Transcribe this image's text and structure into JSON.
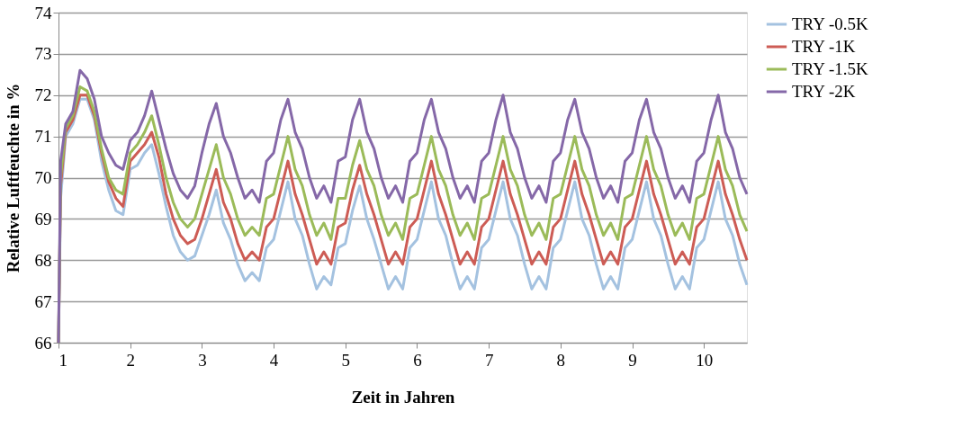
{
  "chart_data": {
    "type": "line",
    "xlabel": "Zeit in Jahren",
    "ylabel": "Relative Luftfeuchte in %",
    "x": [
      1.0,
      1.03,
      1.1,
      1.2,
      1.3,
      1.4,
      1.5,
      1.6,
      1.7,
      1.8,
      1.9,
      2.0,
      2.1,
      2.2,
      2.3,
      2.4,
      2.5,
      2.6,
      2.7,
      2.8,
      2.9,
      3.0,
      3.1,
      3.2,
      3.3,
      3.4,
      3.5,
      3.6,
      3.7,
      3.8,
      3.9,
      4.0,
      4.1,
      4.2,
      4.3,
      4.4,
      4.5,
      4.6,
      4.7,
      4.8,
      4.9,
      5.0,
      5.1,
      5.2,
      5.3,
      5.4,
      5.5,
      5.6,
      5.7,
      5.8,
      5.9,
      6.0,
      6.1,
      6.2,
      6.3,
      6.4,
      6.5,
      6.6,
      6.7,
      6.8,
      6.9,
      7.0,
      7.1,
      7.2,
      7.3,
      7.4,
      7.5,
      7.6,
      7.7,
      7.8,
      7.9,
      8.0,
      8.1,
      8.2,
      8.3,
      8.4,
      8.5,
      8.6,
      8.7,
      8.8,
      8.9,
      9.0,
      9.1,
      9.2,
      9.3,
      9.4,
      9.5,
      9.6,
      9.7,
      9.8,
      9.9,
      10.0,
      10.1,
      10.2,
      10.3,
      10.4,
      10.5,
      10.6
    ],
    "series": [
      {
        "name": "TRY -0.5K",
        "color": "#a4c2e0",
        "values": [
          66.0,
          69.5,
          71.0,
          71.3,
          71.9,
          71.9,
          71.4,
          70.4,
          69.7,
          69.2,
          69.1,
          70.2,
          70.3,
          70.6,
          70.8,
          70.1,
          69.3,
          68.6,
          68.2,
          68.0,
          68.1,
          68.6,
          69.1,
          69.7,
          68.9,
          68.5,
          67.9,
          67.5,
          67.7,
          67.5,
          68.3,
          68.5,
          69.2,
          69.9,
          69.0,
          68.6,
          67.9,
          67.3,
          67.6,
          67.4,
          68.3,
          68.4,
          69.2,
          69.8,
          69.0,
          68.5,
          67.9,
          67.3,
          67.6,
          67.3,
          68.3,
          68.5,
          69.2,
          69.9,
          69.0,
          68.6,
          67.9,
          67.3,
          67.6,
          67.3,
          68.3,
          68.5,
          69.2,
          69.9,
          69.0,
          68.6,
          67.9,
          67.3,
          67.6,
          67.3,
          68.3,
          68.5,
          69.2,
          69.9,
          69.0,
          68.6,
          67.9,
          67.3,
          67.6,
          67.3,
          68.3,
          68.5,
          69.2,
          69.9,
          69.0,
          68.6,
          67.9,
          67.3,
          67.6,
          67.3,
          68.3,
          68.5,
          69.2,
          69.9,
          69.0,
          68.6,
          67.9,
          67.4
        ]
      },
      {
        "name": "TRY -1K",
        "color": "#cd5c55",
        "values": [
          66.0,
          69.8,
          71.1,
          71.4,
          72.0,
          72.0,
          71.5,
          70.6,
          69.9,
          69.5,
          69.3,
          70.4,
          70.6,
          70.8,
          71.1,
          70.5,
          69.6,
          69.0,
          68.6,
          68.4,
          68.5,
          69.0,
          69.6,
          70.2,
          69.4,
          69.0,
          68.4,
          68.0,
          68.2,
          68.0,
          68.8,
          69.0,
          69.7,
          70.4,
          69.6,
          69.1,
          68.5,
          67.9,
          68.2,
          67.9,
          68.8,
          68.9,
          69.7,
          70.3,
          69.6,
          69.1,
          68.5,
          67.9,
          68.2,
          67.9,
          68.8,
          69.0,
          69.7,
          70.4,
          69.6,
          69.1,
          68.5,
          67.9,
          68.2,
          67.9,
          68.8,
          69.0,
          69.7,
          70.4,
          69.6,
          69.1,
          68.5,
          67.9,
          68.2,
          67.9,
          68.8,
          69.0,
          69.7,
          70.4,
          69.6,
          69.1,
          68.5,
          67.9,
          68.2,
          67.9,
          68.8,
          69.0,
          69.7,
          70.4,
          69.6,
          69.1,
          68.5,
          67.9,
          68.2,
          67.9,
          68.8,
          69.0,
          69.7,
          70.4,
          69.6,
          69.1,
          68.5,
          68.0
        ]
      },
      {
        "name": "TRY -1.5K",
        "color": "#9bbb59",
        "values": [
          66.0,
          70.0,
          71.2,
          71.5,
          72.2,
          72.1,
          71.6,
          70.7,
          70.0,
          69.7,
          69.6,
          70.6,
          70.8,
          71.1,
          71.5,
          70.8,
          70.0,
          69.4,
          69.0,
          68.8,
          69.0,
          69.6,
          70.2,
          70.8,
          70.0,
          69.6,
          69.0,
          68.6,
          68.8,
          68.6,
          69.5,
          69.6,
          70.3,
          71.0,
          70.2,
          69.8,
          69.1,
          68.6,
          68.9,
          68.5,
          69.5,
          69.5,
          70.3,
          70.9,
          70.2,
          69.8,
          69.1,
          68.6,
          68.9,
          68.5,
          69.5,
          69.6,
          70.3,
          71.0,
          70.2,
          69.8,
          69.1,
          68.6,
          68.9,
          68.5,
          69.5,
          69.6,
          70.3,
          71.0,
          70.2,
          69.8,
          69.1,
          68.6,
          68.9,
          68.5,
          69.5,
          69.6,
          70.3,
          71.0,
          70.2,
          69.8,
          69.1,
          68.6,
          68.9,
          68.5,
          69.5,
          69.6,
          70.3,
          71.0,
          70.2,
          69.8,
          69.1,
          68.6,
          68.9,
          68.5,
          69.5,
          69.6,
          70.3,
          71.0,
          70.2,
          69.8,
          69.1,
          68.7
        ]
      },
      {
        "name": "TRY -2K",
        "color": "#8568a8",
        "values": [
          66.0,
          70.4,
          71.3,
          71.6,
          72.6,
          72.4,
          71.9,
          71.0,
          70.6,
          70.3,
          70.2,
          70.9,
          71.1,
          71.5,
          72.1,
          71.4,
          70.7,
          70.1,
          69.7,
          69.5,
          69.8,
          70.6,
          71.3,
          71.8,
          71.0,
          70.6,
          70.0,
          69.5,
          69.7,
          69.4,
          70.4,
          70.6,
          71.4,
          71.9,
          71.1,
          70.7,
          70.0,
          69.5,
          69.8,
          69.4,
          70.4,
          70.5,
          71.4,
          71.9,
          71.1,
          70.7,
          70.0,
          69.5,
          69.8,
          69.4,
          70.4,
          70.6,
          71.4,
          71.9,
          71.1,
          70.7,
          70.0,
          69.5,
          69.8,
          69.4,
          70.4,
          70.6,
          71.4,
          72.0,
          71.1,
          70.7,
          70.0,
          69.5,
          69.8,
          69.4,
          70.4,
          70.6,
          71.4,
          71.9,
          71.1,
          70.7,
          70.0,
          69.5,
          69.8,
          69.4,
          70.4,
          70.6,
          71.4,
          71.9,
          71.1,
          70.7,
          70.0,
          69.5,
          69.8,
          69.4,
          70.4,
          70.6,
          71.4,
          72.0,
          71.1,
          70.7,
          70.0,
          69.6
        ]
      }
    ],
    "xlim": [
      1,
      10.6
    ],
    "xticks": [
      1,
      2,
      3,
      4,
      5,
      6,
      7,
      8,
      9,
      10
    ],
    "ylim": [
      66,
      74
    ],
    "yticks": [
      66,
      67,
      68,
      69,
      70,
      71,
      72,
      73,
      74
    ],
    "grid": "y",
    "legend": "right",
    "line_style": "solid"
  }
}
